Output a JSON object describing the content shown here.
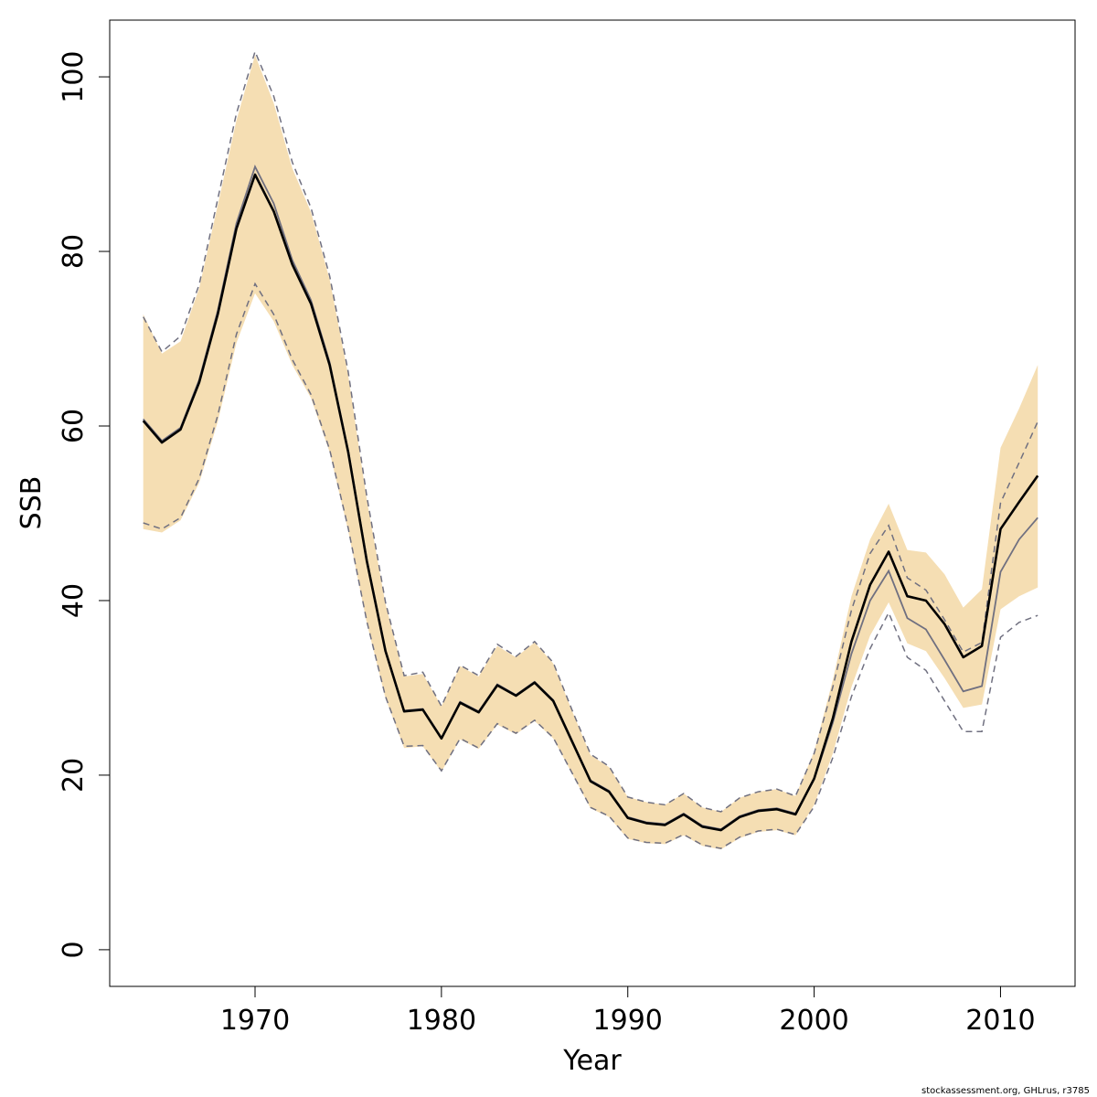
{
  "chart_data": {
    "type": "line",
    "xlabel": "Year",
    "ylabel": "SSB",
    "xlim": [
      1962.2,
      2014.0
    ],
    "ylim": [
      -4.2,
      106.5
    ],
    "x_ticks": [
      1970,
      1980,
      1990,
      2000,
      2010
    ],
    "x_tick_labels": [
      "1970",
      "1980",
      "1990",
      "2000",
      "2010"
    ],
    "y_ticks": [
      0,
      20,
      40,
      60,
      80,
      100
    ],
    "y_tick_labels": [
      "0",
      "20",
      "40",
      "60",
      "80",
      "100"
    ],
    "grid": false,
    "legend": "none",
    "footnote": "stockassessment.org, GHLrus, r3785",
    "colors": {
      "band": "#f5deb3",
      "main_line": "#000000",
      "retro_line": "#707080",
      "retro_dashed": "#707080"
    },
    "x": [
      1964,
      1965,
      1966,
      1967,
      1968,
      1969,
      1970,
      1971,
      1972,
      1973,
      1974,
      1975,
      1976,
      1977,
      1978,
      1979,
      1980,
      1981,
      1982,
      1983,
      1984,
      1985,
      1986,
      1987,
      1988,
      1989,
      1990,
      1991,
      1992,
      1993,
      1994,
      1995,
      1996,
      1997,
      1998,
      1999,
      2000,
      2001,
      2002,
      2003,
      2004,
      2005,
      2006,
      2007,
      2008,
      2009,
      2010,
      2011,
      2012
    ],
    "series": [
      {
        "role": "estimate",
        "values": [
          60.6,
          58.1,
          59.6,
          65.0,
          72.8,
          82.6,
          88.8,
          84.6,
          78.5,
          74.0,
          67.0,
          57.0,
          44.5,
          34.2,
          27.3,
          27.5,
          24.2,
          28.3,
          27.2,
          30.3,
          29.1,
          30.6,
          28.5,
          23.9,
          19.3,
          18.1,
          15.1,
          14.5,
          14.3,
          15.5,
          14.1,
          13.7,
          15.2,
          15.9,
          16.1,
          15.5,
          19.6,
          26.5,
          35.3,
          41.8,
          45.6,
          40.5,
          40.0,
          37.3,
          33.5,
          34.8,
          48.2,
          51.3,
          54.3
        ]
      },
      {
        "role": "lower",
        "values": [
          48.2,
          47.8,
          49.2,
          53.5,
          60.5,
          69.5,
          75.2,
          72.0,
          67.0,
          63.2,
          57.0,
          48.0,
          37.4,
          28.8,
          23.1,
          23.3,
          20.4,
          24.1,
          23.0,
          25.8,
          24.7,
          26.2,
          24.2,
          20.2,
          16.2,
          15.2,
          12.7,
          12.2,
          12.1,
          13.1,
          11.9,
          11.5,
          12.8,
          13.5,
          13.7,
          13.1,
          16.6,
          22.5,
          30.1,
          36.0,
          39.8,
          35.1,
          34.2,
          31.1,
          27.7,
          28.1,
          39.0,
          40.5,
          41.5
        ]
      },
      {
        "role": "upper",
        "values": [
          72.8,
          68.3,
          69.7,
          75.8,
          85.3,
          95.0,
          102.5,
          97.0,
          89.5,
          84.5,
          76.8,
          65.8,
          51.5,
          39.6,
          31.3,
          31.6,
          27.9,
          32.5,
          31.3,
          34.8,
          33.5,
          35.2,
          32.8,
          27.4,
          22.3,
          20.9,
          17.5,
          16.9,
          16.6,
          17.9,
          16.3,
          15.8,
          17.4,
          18.1,
          18.4,
          17.6,
          22.7,
          30.9,
          40.5,
          47.0,
          51.1,
          45.8,
          45.5,
          43.0,
          39.2,
          41.3,
          57.5,
          62.0,
          67.0
        ]
      },
      {
        "role": "retro-estimate",
        "values": [
          60.8,
          58.3,
          59.8,
          65.3,
          73.2,
          83.2,
          89.7,
          85.5,
          79.0,
          74.4,
          67.3,
          57.2,
          44.7,
          34.3,
          27.4,
          27.6,
          24.3,
          28.4,
          27.3,
          30.4,
          29.2,
          30.7,
          28.6,
          24.0,
          19.4,
          18.2,
          15.2,
          14.6,
          14.4,
          15.6,
          14.2,
          13.8,
          15.3,
          16.0,
          16.2,
          15.6,
          19.5,
          26.0,
          33.9,
          40.0,
          43.4,
          38.0,
          36.7,
          33.2,
          29.6,
          30.2,
          43.3,
          47.0,
          49.5
        ]
      },
      {
        "role": "retro-lower",
        "values": [
          48.9,
          48.2,
          49.5,
          54.0,
          61.2,
          70.5,
          76.3,
          72.8,
          67.6,
          63.6,
          57.3,
          48.3,
          37.6,
          29.0,
          23.3,
          23.4,
          20.5,
          24.2,
          23.1,
          25.9,
          24.8,
          26.3,
          24.3,
          20.3,
          16.3,
          15.3,
          12.8,
          12.3,
          12.2,
          13.2,
          12.0,
          11.6,
          12.9,
          13.6,
          13.8,
          13.2,
          16.4,
          22.0,
          29.0,
          34.5,
          38.6,
          33.5,
          32.0,
          28.5,
          25.0,
          25.0,
          35.8,
          37.5,
          38.3
        ]
      },
      {
        "role": "retro-upper",
        "values": [
          72.5,
          68.5,
          70.3,
          76.2,
          86.0,
          95.8,
          102.9,
          97.8,
          90.2,
          85.0,
          77.2,
          66.2,
          51.9,
          39.8,
          31.4,
          31.8,
          27.9,
          32.6,
          31.4,
          35.0,
          33.6,
          35.3,
          32.9,
          27.5,
          22.4,
          21.0,
          17.5,
          16.9,
          16.6,
          17.9,
          16.3,
          15.8,
          17.4,
          18.1,
          18.4,
          17.6,
          22.5,
          30.1,
          38.9,
          45.4,
          48.6,
          42.6,
          41.2,
          37.8,
          34.1,
          35.2,
          51.2,
          55.8,
          60.5
        ]
      }
    ]
  }
}
